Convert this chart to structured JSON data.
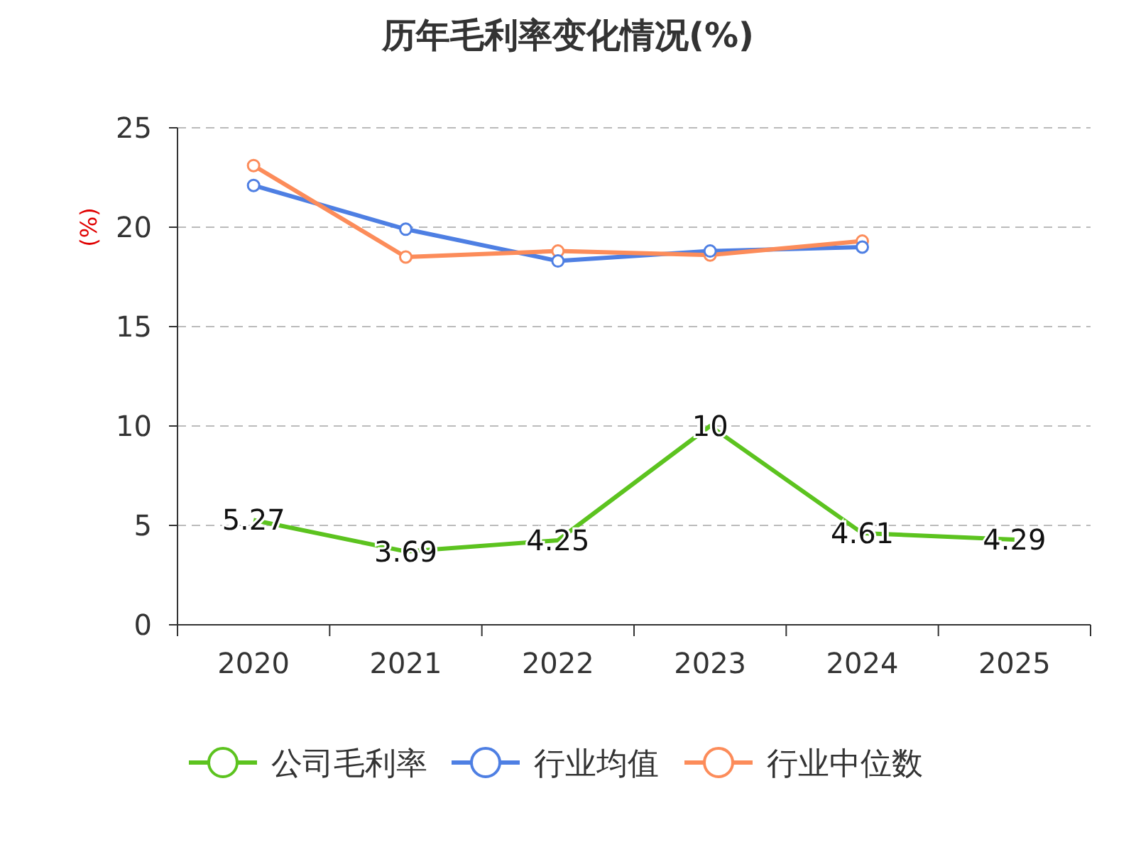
{
  "chart_data": {
    "type": "line",
    "title": "历年毛利率变化情况(%)",
    "ylabel": "(%)",
    "categories": [
      "2020",
      "2021",
      "2022",
      "2023",
      "2024",
      "2025"
    ],
    "series": [
      {
        "name": "公司毛利率",
        "color": "#5cc31f",
        "marker": "none",
        "values": [
          5.27,
          3.69,
          4.25,
          10,
          4.61,
          4.29
        ],
        "value_labels": [
          "5.27",
          "3.69",
          "4.25",
          "10",
          "4.61",
          "4.29"
        ]
      },
      {
        "name": "行业均值",
        "color": "#4e7fe3",
        "marker": "circle",
        "values": [
          22.1,
          19.9,
          18.3,
          18.8,
          19.0,
          null
        ]
      },
      {
        "name": "行业中位数",
        "color": "#fc8c5a",
        "marker": "circle",
        "values": [
          23.1,
          18.5,
          18.8,
          18.6,
          19.3,
          null
        ]
      }
    ],
    "ylim": [
      0,
      25
    ],
    "yticks": [
      0,
      5,
      10,
      15,
      20,
      25
    ],
    "grid": "y",
    "legend": "bottom",
    "line_style": "solid"
  }
}
